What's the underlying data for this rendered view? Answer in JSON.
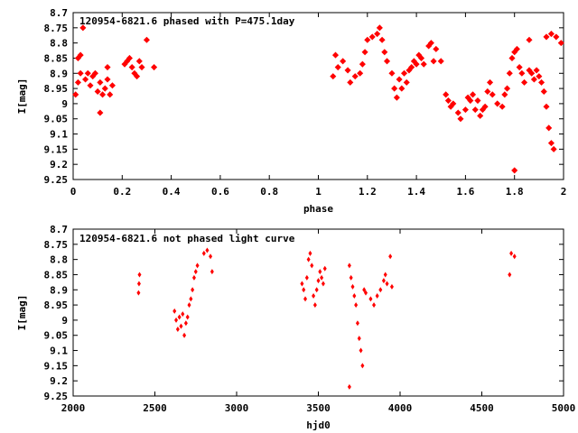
{
  "chart_data": [
    {
      "type": "scatter",
      "title": "120954-6821.6 phased with P=475.1day",
      "xlabel": "phase",
      "ylabel": "I[mag]",
      "xlim": [
        0,
        2
      ],
      "ylim": [
        8.7,
        9.25
      ],
      "y_inverted": true,
      "xticks": [
        "0",
        "0.2",
        "0.4",
        "0.6",
        "0.8",
        "1",
        "1.2",
        "1.4",
        "1.6",
        "1.8",
        "2"
      ],
      "yticks": [
        "8.7",
        "8.75",
        "8.8",
        "8.85",
        "8.9",
        "8.95",
        "9",
        "9.05",
        "9.1",
        "9.15",
        "9.2",
        "9.25"
      ],
      "marker_color": "#ff0000",
      "grid": false,
      "series": [
        {
          "points": [
            [
              0.01,
              8.97
            ],
            [
              0.02,
              8.93
            ],
            [
              0.02,
              8.85
            ],
            [
              0.03,
              8.84
            ],
            [
              0.03,
              8.9
            ],
            [
              0.04,
              8.75
            ],
            [
              0.05,
              8.92
            ],
            [
              0.06,
              8.9
            ],
            [
              0.07,
              8.94
            ],
            [
              0.08,
              8.91
            ],
            [
              0.09,
              8.9
            ],
            [
              0.1,
              8.96
            ],
            [
              0.11,
              8.93
            ],
            [
              0.11,
              9.03
            ],
            [
              0.12,
              8.97
            ],
            [
              0.13,
              8.95
            ],
            [
              0.14,
              8.92
            ],
            [
              0.14,
              8.88
            ],
            [
              0.15,
              8.97
            ],
            [
              0.16,
              8.94
            ],
            [
              0.21,
              8.87
            ],
            [
              0.22,
              8.86
            ],
            [
              0.23,
              8.85
            ],
            [
              0.24,
              8.88
            ],
            [
              0.25,
              8.9
            ],
            [
              0.26,
              8.91
            ],
            [
              0.27,
              8.86
            ],
            [
              0.28,
              8.88
            ],
            [
              0.3,
              8.79
            ],
            [
              0.33,
              8.88
            ],
            [
              1.06,
              8.91
            ],
            [
              1.07,
              8.84
            ],
            [
              1.08,
              8.88
            ],
            [
              1.1,
              8.86
            ],
            [
              1.12,
              8.89
            ],
            [
              1.13,
              8.93
            ],
            [
              1.15,
              8.91
            ],
            [
              1.17,
              8.9
            ],
            [
              1.18,
              8.87
            ],
            [
              1.19,
              8.83
            ],
            [
              1.2,
              8.79
            ],
            [
              1.22,
              8.78
            ],
            [
              1.24,
              8.77
            ],
            [
              1.25,
              8.75
            ],
            [
              1.26,
              8.79
            ],
            [
              1.27,
              8.83
            ],
            [
              1.28,
              8.86
            ],
            [
              1.3,
              8.9
            ],
            [
              1.31,
              8.95
            ],
            [
              1.32,
              8.98
            ],
            [
              1.33,
              8.92
            ],
            [
              1.34,
              8.95
            ],
            [
              1.35,
              8.9
            ],
            [
              1.36,
              8.93
            ],
            [
              1.37,
              8.89
            ],
            [
              1.38,
              8.88
            ],
            [
              1.39,
              8.86
            ],
            [
              1.4,
              8.87
            ],
            [
              1.41,
              8.84
            ],
            [
              1.42,
              8.85
            ],
            [
              1.43,
              8.87
            ],
            [
              1.45,
              8.81
            ],
            [
              1.46,
              8.8
            ],
            [
              1.47,
              8.86
            ],
            [
              1.48,
              8.82
            ],
            [
              1.5,
              8.86
            ],
            [
              1.52,
              8.97
            ],
            [
              1.53,
              8.99
            ],
            [
              1.54,
              9.01
            ],
            [
              1.55,
              9.0
            ],
            [
              1.57,
              9.03
            ],
            [
              1.58,
              9.05
            ],
            [
              1.6,
              9.02
            ],
            [
              1.61,
              8.98
            ],
            [
              1.62,
              8.99
            ],
            [
              1.63,
              8.97
            ],
            [
              1.64,
              9.02
            ],
            [
              1.65,
              8.99
            ],
            [
              1.66,
              9.04
            ],
            [
              1.67,
              9.02
            ],
            [
              1.68,
              9.01
            ],
            [
              1.69,
              8.96
            ],
            [
              1.7,
              8.93
            ],
            [
              1.71,
              8.97
            ],
            [
              1.73,
              9.0
            ],
            [
              1.75,
              9.01
            ],
            [
              1.76,
              8.97
            ],
            [
              1.77,
              8.95
            ],
            [
              1.78,
              8.9
            ],
            [
              1.79,
              8.85
            ],
            [
              1.8,
              8.83
            ],
            [
              1.81,
              8.82
            ],
            [
              1.82,
              8.88
            ],
            [
              1.83,
              8.9
            ],
            [
              1.84,
              8.93
            ],
            [
              1.86,
              8.89
            ],
            [
              1.87,
              8.9
            ],
            [
              1.88,
              8.92
            ],
            [
              1.89,
              8.89
            ],
            [
              1.9,
              8.91
            ],
            [
              1.91,
              8.93
            ],
            [
              1.92,
              8.96
            ],
            [
              1.93,
              9.01
            ],
            [
              1.94,
              9.08
            ],
            [
              1.95,
              9.13
            ],
            [
              1.96,
              9.15
            ],
            [
              1.8,
              9.22
            ],
            [
              1.86,
              8.79
            ],
            [
              1.93,
              8.78
            ],
            [
              1.95,
              8.77
            ],
            [
              1.97,
              8.78
            ],
            [
              1.99,
              8.8
            ]
          ]
        }
      ]
    },
    {
      "type": "scatter",
      "title": "120954-6821.6 not phased light curve",
      "xlabel": "hjd0",
      "ylabel": "I[mag]",
      "xlim": [
        2000,
        5000
      ],
      "ylim": [
        8.7,
        9.25
      ],
      "y_inverted": true,
      "xticks": [
        "2000",
        "2500",
        "3000",
        "3500",
        "4000",
        "4500",
        "5000"
      ],
      "yticks": [
        "8.7",
        "8.75",
        "8.8",
        "8.85",
        "8.9",
        "8.95",
        "9",
        "9.05",
        "9.1",
        "9.15",
        "9.2",
        "9.25"
      ],
      "marker_color": "#ff0000",
      "grid": false,
      "series": [
        {
          "points": [
            [
              2400,
              8.91
            ],
            [
              2403,
              8.88
            ],
            [
              2406,
              8.85
            ],
            [
              2620,
              8.97
            ],
            [
              2630,
              9.0
            ],
            [
              2640,
              9.03
            ],
            [
              2650,
              8.99
            ],
            [
              2660,
              9.02
            ],
            [
              2670,
              8.98
            ],
            [
              2680,
              9.05
            ],
            [
              2690,
              9.01
            ],
            [
              2700,
              8.99
            ],
            [
              2710,
              8.95
            ],
            [
              2720,
              8.93
            ],
            [
              2730,
              8.9
            ],
            [
              2740,
              8.86
            ],
            [
              2750,
              8.84
            ],
            [
              2760,
              8.82
            ],
            [
              2800,
              8.78
            ],
            [
              2820,
              8.77
            ],
            [
              2840,
              8.79
            ],
            [
              2850,
              8.84
            ],
            [
              3400,
              8.88
            ],
            [
              3410,
              8.9
            ],
            [
              3420,
              8.93
            ],
            [
              3430,
              8.86
            ],
            [
              3440,
              8.8
            ],
            [
              3450,
              8.78
            ],
            [
              3460,
              8.82
            ],
            [
              3470,
              8.92
            ],
            [
              3480,
              8.95
            ],
            [
              3490,
              8.9
            ],
            [
              3500,
              8.87
            ],
            [
              3510,
              8.84
            ],
            [
              3520,
              8.86
            ],
            [
              3530,
              8.88
            ],
            [
              3540,
              8.83
            ],
            [
              3690,
              8.82
            ],
            [
              3700,
              8.86
            ],
            [
              3710,
              8.89
            ],
            [
              3720,
              8.92
            ],
            [
              3730,
              8.95
            ],
            [
              3740,
              9.01
            ],
            [
              3750,
              9.06
            ],
            [
              3760,
              9.1
            ],
            [
              3770,
              9.15
            ],
            [
              3780,
              8.9
            ],
            [
              3790,
              8.91
            ],
            [
              3690,
              9.22
            ],
            [
              3820,
              8.93
            ],
            [
              3840,
              8.95
            ],
            [
              3860,
              8.92
            ],
            [
              3880,
              8.9
            ],
            [
              3900,
              8.87
            ],
            [
              3910,
              8.85
            ],
            [
              3920,
              8.88
            ],
            [
              3940,
              8.79
            ],
            [
              3950,
              8.89
            ],
            [
              4670,
              8.85
            ],
            [
              4680,
              8.78
            ],
            [
              4700,
              8.79
            ]
          ]
        }
      ]
    }
  ]
}
